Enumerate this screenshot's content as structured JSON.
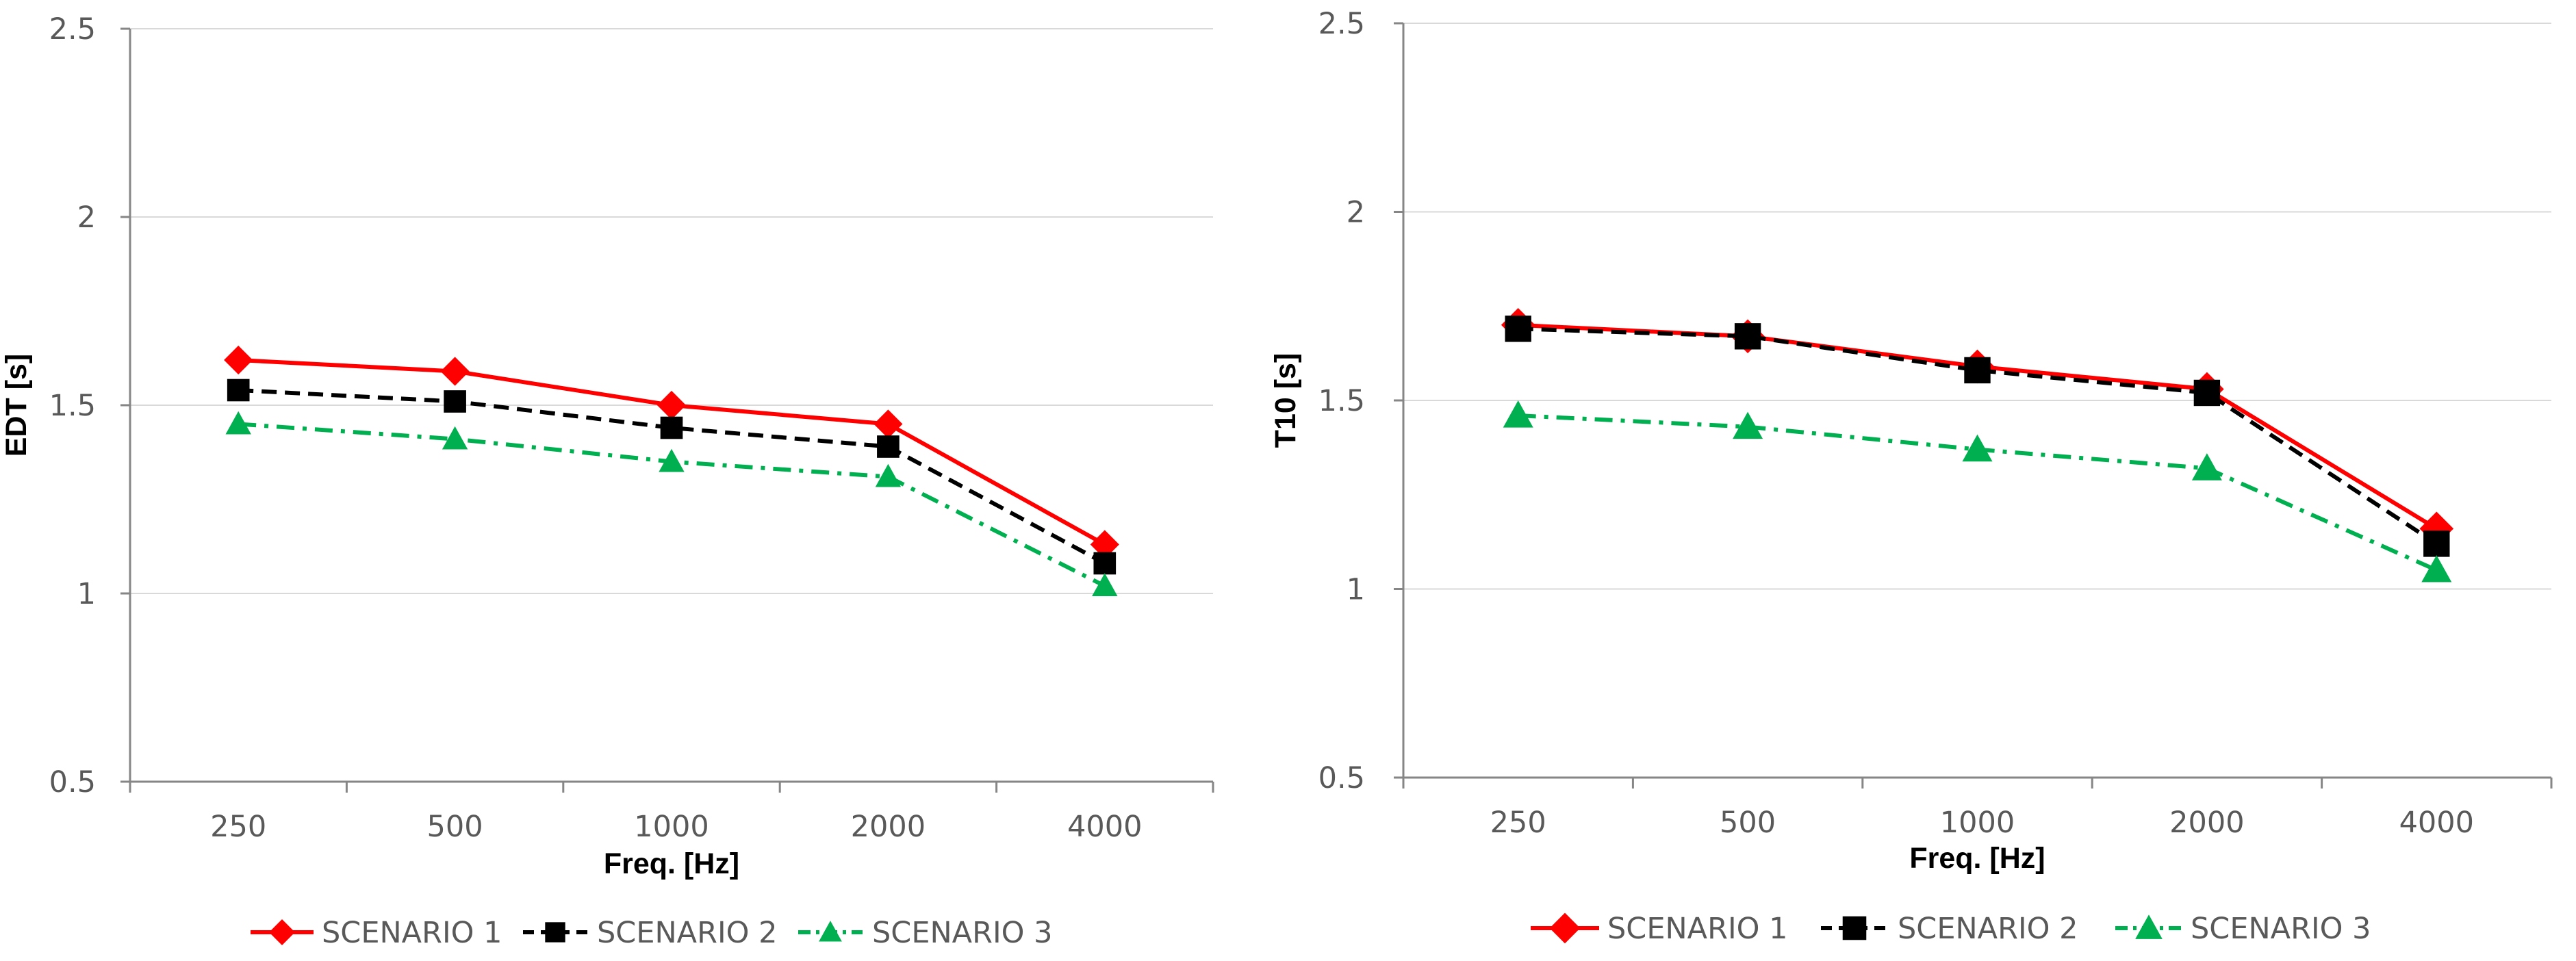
{
  "chart_data": [
    {
      "type": "line",
      "categories": [
        "250",
        "500",
        "1000",
        "2000",
        "4000"
      ],
      "xlabel": "Freq. [Hz]",
      "ylabel": "EDT [s]",
      "ylim": [
        0.5,
        2.5
      ],
      "yticks": [
        0.5,
        1,
        1.5,
        2,
        2.5
      ],
      "ytick_labels": [
        "0.5",
        "1",
        "1.5",
        "2",
        "2.5"
      ],
      "grid": true,
      "legend_position": "bottom",
      "series": [
        {
          "name": "SCENARIO 1",
          "values": [
            1.62,
            1.59,
            1.5,
            1.45,
            1.13
          ],
          "color": "#ff0000",
          "marker": "diamond",
          "dash": "solid"
        },
        {
          "name": "SCENARIO 2",
          "values": [
            1.54,
            1.51,
            1.44,
            1.39,
            1.08
          ],
          "color": "#000000",
          "marker": "square",
          "dash": "dashed"
        },
        {
          "name": "SCENARIO 3",
          "values": [
            1.45,
            1.41,
            1.35,
            1.31,
            1.02
          ],
          "color": "#00b050",
          "marker": "triangle",
          "dash": "dashdot"
        }
      ]
    },
    {
      "type": "line",
      "categories": [
        "250",
        "500",
        "1000",
        "2000",
        "4000"
      ],
      "xlabel": "Freq. [Hz]",
      "ylabel": "T10 [s]",
      "ylim": [
        0.5,
        2.5
      ],
      "yticks": [
        0.5,
        1,
        1.5,
        2,
        2.5
      ],
      "ytick_labels": [
        "0.5",
        "1",
        "1.5",
        "2",
        "2.5"
      ],
      "grid": true,
      "legend_position": "bottom",
      "series": [
        {
          "name": "SCENARIO 1",
          "values": [
            1.7,
            1.67,
            1.59,
            1.53,
            1.16
          ],
          "color": "#ff0000",
          "marker": "diamond",
          "dash": "solid"
        },
        {
          "name": "SCENARIO 2",
          "values": [
            1.69,
            1.67,
            1.58,
            1.52,
            1.12
          ],
          "color": "#000000",
          "marker": "square",
          "dash": "dashed"
        },
        {
          "name": "SCENARIO 3",
          "values": [
            1.46,
            1.43,
            1.37,
            1.32,
            1.05
          ],
          "color": "#00b050",
          "marker": "triangle",
          "dash": "dashdot"
        }
      ]
    }
  ]
}
